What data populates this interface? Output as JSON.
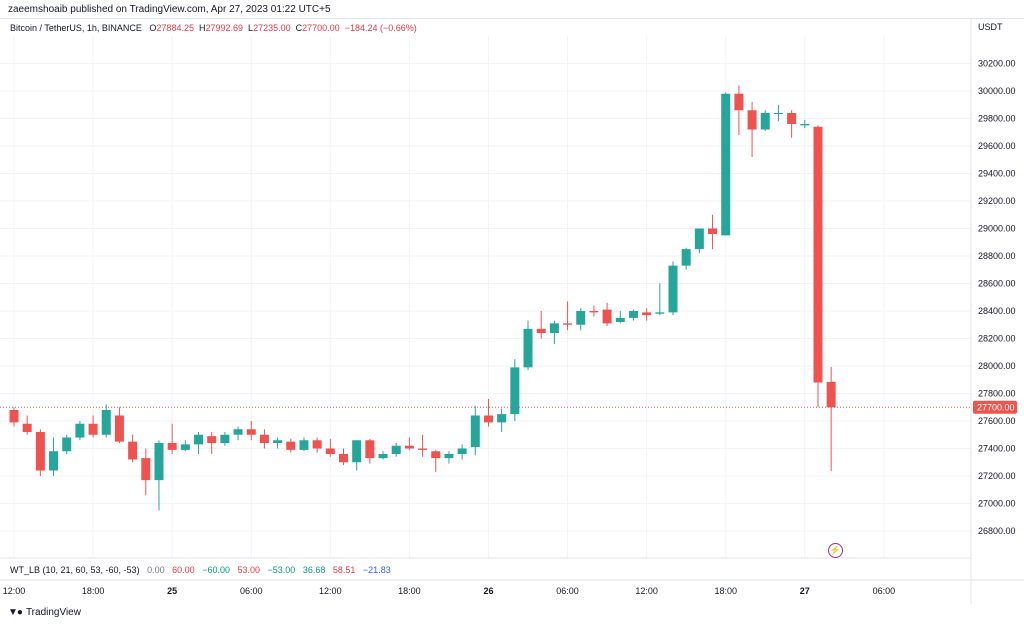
{
  "header": {
    "published": "zaeemshoaib published on TradingView.com, Apr 27, 2023 01:22 UTC+5"
  },
  "legend": {
    "symbol": "Bitcoin / TetherUS, 1h, BINANCE",
    "o_label": "O",
    "o_value": "27884.25",
    "h_label": "H",
    "h_value": "27992.69",
    "l_label": "L",
    "l_value": "27235.00",
    "c_label": "C",
    "c_value": "27700.00",
    "change": "−184.24 (−0.66%)"
  },
  "indicator": {
    "name": "WT_LB (10, 21, 60, 53, -60, -53)",
    "values": [
      {
        "text": "0.00",
        "color": "#787b86"
      },
      {
        "text": "60.00",
        "color": "#f23645"
      },
      {
        "text": "−60.00",
        "color": "#089981"
      },
      {
        "text": "53.00",
        "color": "#f23645"
      },
      {
        "text": "−53.00",
        "color": "#089981"
      },
      {
        "text": "36.68",
        "color": "#089981"
      },
      {
        "text": "58.51",
        "color": "#f23645"
      },
      {
        "text": "−21.83",
        "color": "#2962ff"
      }
    ]
  },
  "footer": {
    "brand": "TradingView",
    "logo": "tv-logo-icon"
  },
  "price_axis": {
    "currency": "USDT",
    "current_price_label": "27700.00"
  },
  "colors": {
    "up": "#26a69a",
    "down": "#ef5350",
    "grid": "#f0f3fa",
    "price_line": "#ef5350",
    "axis_text": "#131722"
  },
  "chart_data": {
    "type": "candlestick",
    "symbol": "BTCUSDT",
    "timeframe": "1h",
    "ylim": [
      26640,
      30400
    ],
    "current_price": 27700,
    "y_ticks": [
      26800,
      27000,
      27200,
      27400,
      27600,
      27800,
      28000,
      28200,
      28400,
      28600,
      28800,
      29000,
      29200,
      29400,
      29600,
      29800,
      30000,
      30200
    ],
    "x_ticks": [
      {
        "index": 0,
        "label": "12:00"
      },
      {
        "index": 6,
        "label": "18:00"
      },
      {
        "index": 12,
        "label": "25"
      },
      {
        "index": 18,
        "label": "06:00"
      },
      {
        "index": 24,
        "label": "12:00"
      },
      {
        "index": 30,
        "label": "18:00"
      },
      {
        "index": 36,
        "label": "26"
      },
      {
        "index": 42,
        "label": "06:00"
      },
      {
        "index": 48,
        "label": "12:00"
      },
      {
        "index": 54,
        "label": "18:00"
      },
      {
        "index": 60,
        "label": "27"
      },
      {
        "index": 66,
        "label": "06:00"
      }
    ],
    "candles": [
      {
        "o": 27680,
        "h": 27700,
        "l": 27560,
        "c": 27590
      },
      {
        "o": 27580,
        "h": 27640,
        "l": 27500,
        "c": 27520
      },
      {
        "o": 27520,
        "h": 27540,
        "l": 27200,
        "c": 27240
      },
      {
        "o": 27240,
        "h": 27480,
        "l": 27200,
        "c": 27380
      },
      {
        "o": 27380,
        "h": 27500,
        "l": 27360,
        "c": 27480
      },
      {
        "o": 27480,
        "h": 27600,
        "l": 27460,
        "c": 27580
      },
      {
        "o": 27580,
        "h": 27640,
        "l": 27480,
        "c": 27500
      },
      {
        "o": 27500,
        "h": 27720,
        "l": 27480,
        "c": 27680
      },
      {
        "o": 27640,
        "h": 27700,
        "l": 27440,
        "c": 27450
      },
      {
        "o": 27450,
        "h": 27500,
        "l": 27300,
        "c": 27320
      },
      {
        "o": 27330,
        "h": 27400,
        "l": 27060,
        "c": 27170
      },
      {
        "o": 27170,
        "h": 27460,
        "l": 26950,
        "c": 27440
      },
      {
        "o": 27440,
        "h": 27580,
        "l": 27360,
        "c": 27390
      },
      {
        "o": 27390,
        "h": 27460,
        "l": 27380,
        "c": 27430
      },
      {
        "o": 27430,
        "h": 27520,
        "l": 27360,
        "c": 27500
      },
      {
        "o": 27490,
        "h": 27520,
        "l": 27360,
        "c": 27440
      },
      {
        "o": 27440,
        "h": 27520,
        "l": 27420,
        "c": 27500
      },
      {
        "o": 27500,
        "h": 27560,
        "l": 27460,
        "c": 27540
      },
      {
        "o": 27540,
        "h": 27600,
        "l": 27460,
        "c": 27500
      },
      {
        "o": 27500,
        "h": 27540,
        "l": 27400,
        "c": 27440
      },
      {
        "o": 27440,
        "h": 27480,
        "l": 27400,
        "c": 27460
      },
      {
        "o": 27450,
        "h": 27470,
        "l": 27370,
        "c": 27390
      },
      {
        "o": 27390,
        "h": 27480,
        "l": 27380,
        "c": 27460
      },
      {
        "o": 27460,
        "h": 27480,
        "l": 27370,
        "c": 27400
      },
      {
        "o": 27400,
        "h": 27470,
        "l": 27340,
        "c": 27360
      },
      {
        "o": 27360,
        "h": 27400,
        "l": 27280,
        "c": 27300
      },
      {
        "o": 27300,
        "h": 27460,
        "l": 27240,
        "c": 27460
      },
      {
        "o": 27460,
        "h": 27470,
        "l": 27290,
        "c": 27330
      },
      {
        "o": 27330,
        "h": 27380,
        "l": 27320,
        "c": 27360
      },
      {
        "o": 27360,
        "h": 27440,
        "l": 27340,
        "c": 27420
      },
      {
        "o": 27420,
        "h": 27480,
        "l": 27390,
        "c": 27400
      },
      {
        "o": 27400,
        "h": 27500,
        "l": 27340,
        "c": 27390
      },
      {
        "o": 27380,
        "h": 27390,
        "l": 27230,
        "c": 27330
      },
      {
        "o": 27330,
        "h": 27380,
        "l": 27290,
        "c": 27360
      },
      {
        "o": 27360,
        "h": 27430,
        "l": 27320,
        "c": 27400
      },
      {
        "o": 27410,
        "h": 27710,
        "l": 27350,
        "c": 27640
      },
      {
        "o": 27640,
        "h": 27760,
        "l": 27560,
        "c": 27590
      },
      {
        "o": 27590,
        "h": 27690,
        "l": 27520,
        "c": 27650
      },
      {
        "o": 27650,
        "h": 28050,
        "l": 27600,
        "c": 27990
      },
      {
        "o": 27990,
        "h": 28330,
        "l": 27970,
        "c": 28270
      },
      {
        "o": 28270,
        "h": 28400,
        "l": 28200,
        "c": 28240
      },
      {
        "o": 28240,
        "h": 28330,
        "l": 28160,
        "c": 28310
      },
      {
        "o": 28310,
        "h": 28470,
        "l": 28260,
        "c": 28300
      },
      {
        "o": 28300,
        "h": 28420,
        "l": 28260,
        "c": 28400
      },
      {
        "o": 28400,
        "h": 28440,
        "l": 28360,
        "c": 28390
      },
      {
        "o": 28410,
        "h": 28460,
        "l": 28290,
        "c": 28310
      },
      {
        "o": 28320,
        "h": 28400,
        "l": 28310,
        "c": 28350
      },
      {
        "o": 28350,
        "h": 28410,
        "l": 28330,
        "c": 28400
      },
      {
        "o": 28390,
        "h": 28420,
        "l": 28330,
        "c": 28370
      },
      {
        "o": 28380,
        "h": 28600,
        "l": 28370,
        "c": 28390
      },
      {
        "o": 28390,
        "h": 28760,
        "l": 28370,
        "c": 28730
      },
      {
        "o": 28730,
        "h": 28860,
        "l": 28700,
        "c": 28850
      },
      {
        "o": 28850,
        "h": 29000,
        "l": 28820,
        "c": 29000
      },
      {
        "o": 29000,
        "h": 29100,
        "l": 28850,
        "c": 28960
      },
      {
        "o": 28950,
        "h": 29990,
        "l": 28950,
        "c": 29980
      },
      {
        "o": 29980,
        "h": 30040,
        "l": 29680,
        "c": 29860
      },
      {
        "o": 29860,
        "h": 29920,
        "l": 29520,
        "c": 29720
      },
      {
        "o": 29720,
        "h": 29860,
        "l": 29710,
        "c": 29840
      },
      {
        "o": 29840,
        "h": 29900,
        "l": 29780,
        "c": 29840
      },
      {
        "o": 29840,
        "h": 29860,
        "l": 29660,
        "c": 29760
      },
      {
        "o": 29750,
        "h": 29790,
        "l": 29730,
        "c": 29760
      },
      {
        "o": 29740,
        "h": 29750,
        "l": 27700,
        "c": 27880
      },
      {
        "o": 27884.25,
        "h": 27992.69,
        "l": 27235,
        "c": 27700
      }
    ]
  }
}
